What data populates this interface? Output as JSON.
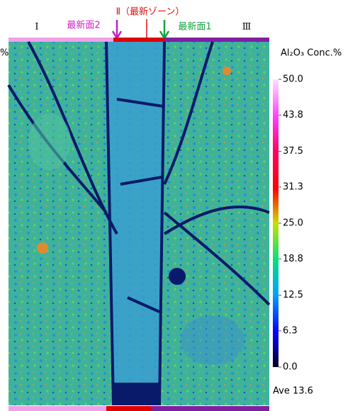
{
  "header": {
    "zone_1": "Ⅰ",
    "surface_2": "最新面2",
    "zone_2": "Ⅱ（最新ゾーン）",
    "surface_1": "最新面1",
    "zone_3": "Ⅲ",
    "left_fragment": "%"
  },
  "colorbar": {
    "title": "Al₂O₃ Conc.%",
    "range": [
      0,
      50
    ],
    "ticks": [
      {
        "value": 50,
        "label": "50.0"
      },
      {
        "value": 43.8,
        "label": "43.8"
      },
      {
        "value": 37.5,
        "label": "37.5"
      },
      {
        "value": 31.3,
        "label": "31.3"
      },
      {
        "value": 25,
        "label": "25.0"
      },
      {
        "value": 18.8,
        "label": "18.8"
      },
      {
        "value": 12.5,
        "label": "12.5"
      },
      {
        "value": 6.3,
        "label": "6.3"
      },
      {
        "value": 0,
        "label": "0.0"
      }
    ]
  },
  "average": "Ave 13.6"
}
